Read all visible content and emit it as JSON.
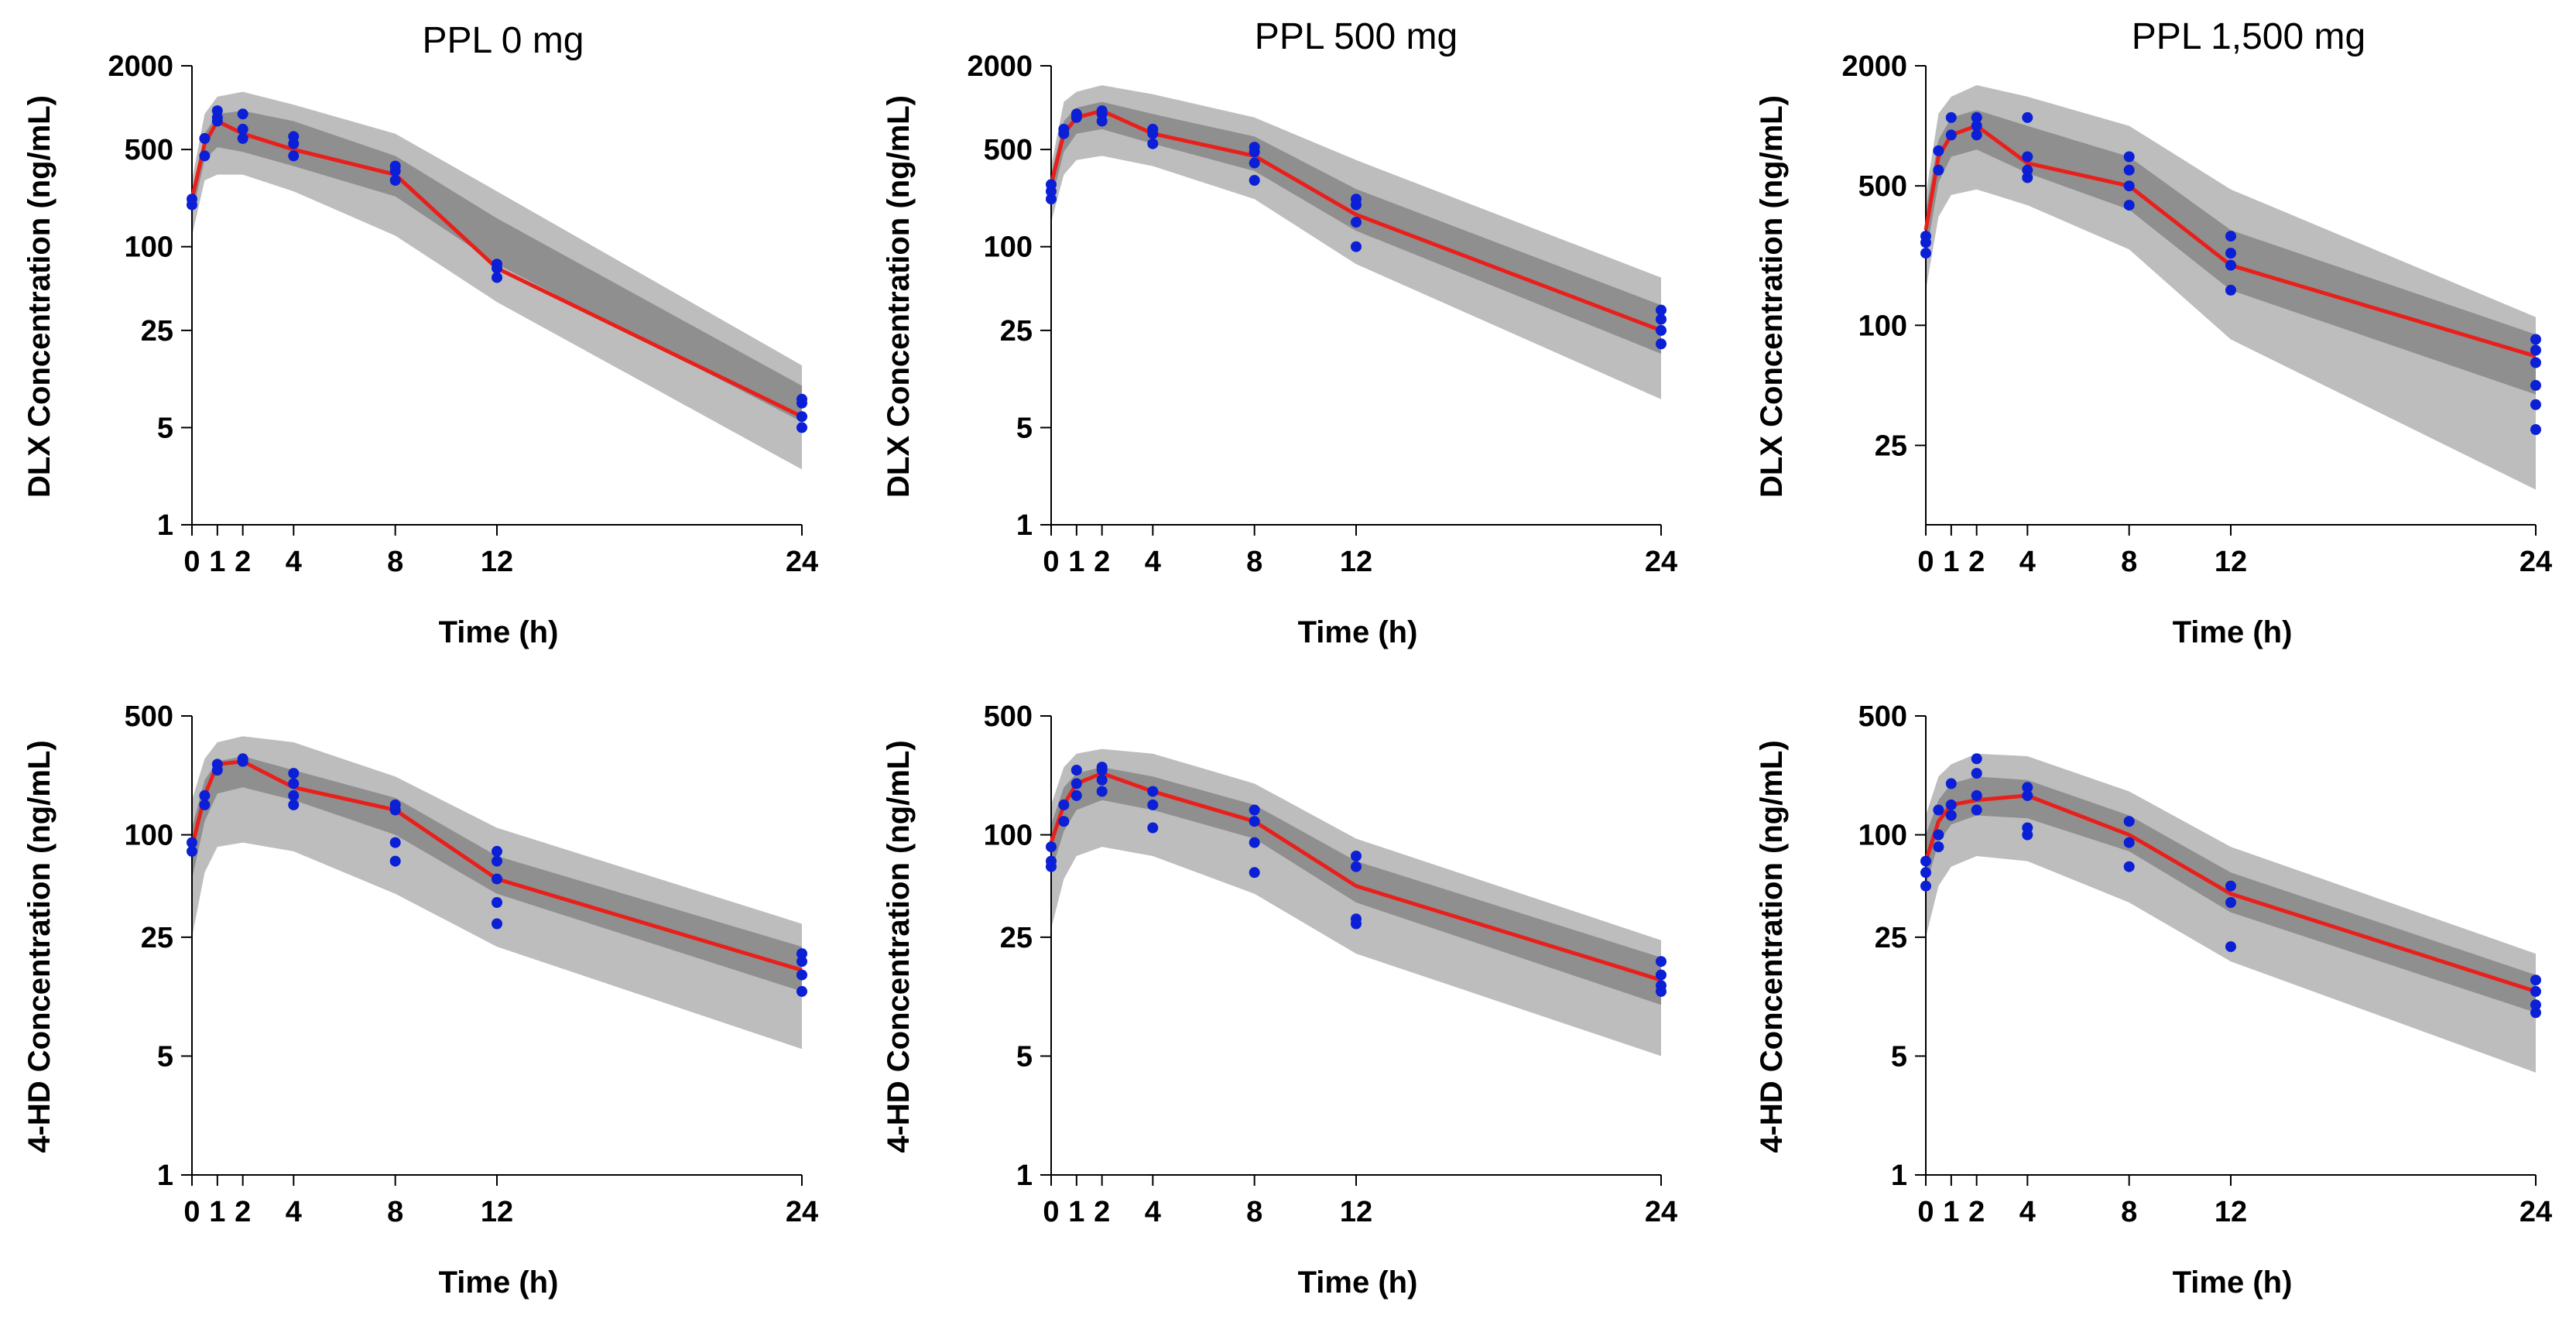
{
  "figure": {
    "background": "#ffffff"
  },
  "colors": {
    "observed": "#0a1fd6",
    "median": "#e8201c",
    "outer_band": "#bdbdbd",
    "inner_band": "#8f8f8f"
  },
  "chart_data": [
    {
      "id": "dlx-ppl0",
      "type": "line",
      "title": "PPL 0 mg",
      "xlabel": "Time (h)",
      "ylabel": "DLX Concentration (ng/mL)",
      "yscale": "log",
      "xlim": [
        0,
        24
      ],
      "ylim": [
        1,
        2000
      ],
      "xticks": [
        0,
        1,
        2,
        4,
        8,
        12,
        24
      ],
      "xtick_labels": [
        "0",
        "1",
        "2",
        "4",
        "8",
        "12",
        "24"
      ],
      "yticks": [
        1,
        5,
        25,
        100,
        500,
        2000
      ],
      "ytick_labels": [
        "1",
        "5",
        "25",
        "100",
        "500",
        "2000"
      ],
      "median": {
        "x": [
          0,
          0.5,
          1,
          2,
          4,
          8,
          12,
          24
        ],
        "y": [
          220,
          550,
          800,
          650,
          500,
          330,
          70,
          6
        ]
      },
      "band_time": [
        0,
        0.5,
        1,
        2,
        4,
        8,
        12,
        24
      ],
      "outer_band": {
        "lower": [
          120,
          300,
          330,
          330,
          250,
          120,
          40,
          2.5
        ],
        "upper": [
          300,
          900,
          1200,
          1300,
          1050,
          650,
          250,
          14
        ]
      },
      "inner_band": {
        "lower": [
          170,
          420,
          520,
          480,
          380,
          230,
          75,
          5.5
        ],
        "upper": [
          240,
          650,
          900,
          950,
          800,
          450,
          160,
          10
        ]
      },
      "observed": [
        [
          0,
          200
        ],
        [
          0,
          220
        ],
        [
          0.5,
          450
        ],
        [
          0.5,
          600
        ],
        [
          1,
          850
        ],
        [
          1,
          950
        ],
        [
          1,
          800
        ],
        [
          2,
          600
        ],
        [
          2,
          700
        ],
        [
          2,
          900
        ],
        [
          4,
          450
        ],
        [
          4,
          550
        ],
        [
          4,
          620
        ],
        [
          8,
          300
        ],
        [
          8,
          350
        ],
        [
          8,
          380
        ],
        [
          12,
          60
        ],
        [
          12,
          70
        ],
        [
          12,
          75
        ],
        [
          24,
          5
        ],
        [
          24,
          6
        ],
        [
          24,
          7.5
        ],
        [
          24,
          8
        ]
      ]
    },
    {
      "id": "dlx-ppl500",
      "type": "line",
      "title": "PPL 500 mg",
      "xlabel": "Time (h)",
      "ylabel": "DLX Concentration (ng/mL)",
      "yscale": "log",
      "xlim": [
        0,
        24
      ],
      "ylim": [
        1,
        2000
      ],
      "xticks": [
        0,
        1,
        2,
        4,
        8,
        12,
        24
      ],
      "xtick_labels": [
        "0",
        "1",
        "2",
        "4",
        "8",
        "12",
        "24"
      ],
      "yticks": [
        1,
        5,
        25,
        100,
        500,
        2000
      ],
      "ytick_labels": [
        "1",
        "5",
        "25",
        "100",
        "500",
        "2000"
      ],
      "median": {
        "x": [
          0,
          0.5,
          1,
          2,
          4,
          8,
          12,
          24
        ],
        "y": [
          280,
          650,
          850,
          950,
          650,
          450,
          170,
          25
        ]
      },
      "band_time": [
        0,
        0.5,
        1,
        2,
        4,
        8,
        12,
        24
      ],
      "outer_band": {
        "lower": [
          150,
          330,
          420,
          450,
          380,
          220,
          75,
          8
        ],
        "upper": [
          380,
          1100,
          1300,
          1450,
          1250,
          850,
          420,
          60
        ]
      },
      "inner_band": {
        "lower": [
          210,
          480,
          650,
          700,
          550,
          350,
          130,
          17
        ],
        "upper": [
          330,
          800,
          1000,
          1100,
          900,
          620,
          260,
          38
        ]
      },
      "observed": [
        [
          0,
          220
        ],
        [
          0,
          250
        ],
        [
          0,
          280
        ],
        [
          0.5,
          650
        ],
        [
          0.5,
          700
        ],
        [
          1,
          900
        ],
        [
          1,
          850
        ],
        [
          2,
          800
        ],
        [
          2,
          900
        ],
        [
          2,
          950
        ],
        [
          4,
          550
        ],
        [
          4,
          650
        ],
        [
          4,
          700
        ],
        [
          8,
          300
        ],
        [
          8,
          400
        ],
        [
          8,
          480
        ],
        [
          8,
          520
        ],
        [
          12,
          100
        ],
        [
          12,
          150
        ],
        [
          12,
          200
        ],
        [
          12,
          220
        ],
        [
          24,
          20
        ],
        [
          24,
          25
        ],
        [
          24,
          30
        ],
        [
          24,
          35
        ]
      ]
    },
    {
      "id": "dlx-ppl1500",
      "type": "line",
      "title": "PPL 1,500 mg",
      "xlabel": "Time (h)",
      "ylabel": "DLX Concentration (ng/mL)",
      "yscale": "log",
      "xlim": [
        0,
        24
      ],
      "ylim": [
        10,
        2000
      ],
      "xticks": [
        0,
        1,
        2,
        4,
        8,
        12,
        24
      ],
      "xtick_labels": [
        "0",
        "1",
        "2",
        "4",
        "8",
        "12",
        "24"
      ],
      "yticks": [
        25,
        100,
        500,
        2000
      ],
      "ytick_labels": [
        "25",
        "100",
        "500",
        "2000"
      ],
      "median": {
        "x": [
          0,
          0.5,
          1,
          2,
          4,
          8,
          12,
          24
        ],
        "y": [
          300,
          700,
          900,
          1000,
          650,
          500,
          200,
          70
        ]
      },
      "band_time": [
        0,
        0.5,
        1,
        2,
        4,
        8,
        12,
        24
      ],
      "outer_band": {
        "lower": [
          150,
          350,
          450,
          480,
          400,
          240,
          85,
          15
        ],
        "upper": [
          450,
          1150,
          1400,
          1600,
          1400,
          1000,
          480,
          110
        ]
      },
      "inner_band": {
        "lower": [
          220,
          520,
          700,
          760,
          580,
          380,
          150,
          45
        ],
        "upper": [
          380,
          850,
          1100,
          1200,
          1000,
          700,
          300,
          90
        ]
      },
      "observed": [
        [
          0,
          230
        ],
        [
          0,
          260
        ],
        [
          0,
          280
        ],
        [
          0.5,
          600
        ],
        [
          0.5,
          750
        ],
        [
          1,
          900
        ],
        [
          1,
          1100
        ],
        [
          2,
          900
        ],
        [
          2,
          1000
        ],
        [
          2,
          1100
        ],
        [
          4,
          550
        ],
        [
          4,
          600
        ],
        [
          4,
          700
        ],
        [
          4,
          1100
        ],
        [
          8,
          400
        ],
        [
          8,
          500
        ],
        [
          8,
          600
        ],
        [
          8,
          700
        ],
        [
          12,
          150
        ],
        [
          12,
          200
        ],
        [
          12,
          230
        ],
        [
          12,
          280
        ],
        [
          24,
          30
        ],
        [
          24,
          40
        ],
        [
          24,
          50
        ],
        [
          24,
          65
        ],
        [
          24,
          75
        ],
        [
          24,
          85
        ]
      ]
    },
    {
      "id": "4hd-ppl0",
      "type": "line",
      "title": "",
      "xlabel": "Time (h)",
      "ylabel": "4-HD Concentration (ng/mL)",
      "yscale": "log",
      "xlim": [
        0,
        24
      ],
      "ylim": [
        1,
        500
      ],
      "xticks": [
        0,
        1,
        2,
        4,
        8,
        12,
        24
      ],
      "xtick_labels": [
        "0",
        "1",
        "2",
        "4",
        "8",
        "12",
        "24"
      ],
      "yticks": [
        1,
        5,
        25,
        100,
        500
      ],
      "ytick_labels": [
        "1",
        "5",
        "25",
        "100",
        "500"
      ],
      "median": {
        "x": [
          0,
          0.5,
          1,
          2,
          4,
          8,
          12,
          24
        ],
        "y": [
          85,
          170,
          260,
          270,
          190,
          140,
          55,
          16
        ]
      },
      "band_time": [
        0,
        0.5,
        1,
        2,
        4,
        8,
        12,
        24
      ],
      "outer_band": {
        "lower": [
          25,
          60,
          85,
          90,
          80,
          45,
          22,
          5.5
        ],
        "upper": [
          160,
          280,
          350,
          380,
          350,
          220,
          110,
          30
        ]
      },
      "inner_band": {
        "lower": [
          55,
          120,
          175,
          190,
          160,
          100,
          45,
          12
        ],
        "upper": [
          110,
          210,
          270,
          290,
          240,
          165,
          75,
          22
        ]
      },
      "observed": [
        [
          0,
          80
        ],
        [
          0,
          90
        ],
        [
          0.5,
          150
        ],
        [
          0.5,
          170
        ],
        [
          1,
          240
        ],
        [
          1,
          260
        ],
        [
          2,
          270
        ],
        [
          2,
          280
        ],
        [
          4,
          150
        ],
        [
          4,
          170
        ],
        [
          4,
          200
        ],
        [
          4,
          230
        ],
        [
          8,
          70
        ],
        [
          8,
          90
        ],
        [
          8,
          140
        ],
        [
          8,
          150
        ],
        [
          12,
          30
        ],
        [
          12,
          40
        ],
        [
          12,
          55
        ],
        [
          12,
          70
        ],
        [
          12,
          80
        ],
        [
          24,
          12
        ],
        [
          24,
          15
        ],
        [
          24,
          18
        ],
        [
          24,
          20
        ]
      ]
    },
    {
      "id": "4hd-ppl500",
      "type": "line",
      "title": "",
      "xlabel": "Time (h)",
      "ylabel": "4-HD Concentration (ng/mL)",
      "yscale": "log",
      "xlim": [
        0,
        24
      ],
      "ylim": [
        1,
        500
      ],
      "xticks": [
        0,
        1,
        2,
        4,
        8,
        12,
        24
      ],
      "xtick_labels": [
        "0",
        "1",
        "2",
        "4",
        "8",
        "12",
        "24"
      ],
      "yticks": [
        1,
        5,
        25,
        100,
        500
      ],
      "ytick_labels": [
        "1",
        "5",
        "25",
        "100",
        "500"
      ],
      "median": {
        "x": [
          0,
          0.5,
          1,
          2,
          4,
          8,
          12,
          24
        ],
        "y": [
          90,
          150,
          200,
          230,
          180,
          120,
          50,
          14
        ]
      },
      "band_time": [
        0,
        0.5,
        1,
        2,
        4,
        8,
        12,
        24
      ],
      "outer_band": {
        "lower": [
          28,
          55,
          75,
          85,
          75,
          45,
          20,
          5
        ],
        "upper": [
          150,
          250,
          300,
          320,
          300,
          200,
          95,
          24
        ]
      },
      "inner_band": {
        "lower": [
          60,
          105,
          140,
          160,
          140,
          95,
          40,
          10
        ],
        "upper": [
          115,
          190,
          230,
          250,
          220,
          150,
          70,
          19
        ]
      },
      "observed": [
        [
          0,
          65
        ],
        [
          0,
          70
        ],
        [
          0,
          85
        ],
        [
          0.5,
          120
        ],
        [
          0.5,
          150
        ],
        [
          1,
          170
        ],
        [
          1,
          200
        ],
        [
          1,
          240
        ],
        [
          2,
          180
        ],
        [
          2,
          210
        ],
        [
          2,
          240
        ],
        [
          2,
          250
        ],
        [
          4,
          110
        ],
        [
          4,
          150
        ],
        [
          4,
          180
        ],
        [
          8,
          60
        ],
        [
          8,
          90
        ],
        [
          8,
          120
        ],
        [
          8,
          140
        ],
        [
          12,
          30
        ],
        [
          12,
          32
        ],
        [
          12,
          65
        ],
        [
          12,
          75
        ],
        [
          24,
          12
        ],
        [
          24,
          13
        ],
        [
          24,
          15
        ],
        [
          24,
          18
        ]
      ]
    },
    {
      "id": "4hd-ppl1500",
      "type": "line",
      "title": "",
      "xlabel": "Time (h)",
      "ylabel": "4-HD Concentration (ng/mL)",
      "yscale": "log",
      "xlim": [
        0,
        24
      ],
      "ylim": [
        1,
        500
      ],
      "xticks": [
        0,
        1,
        2,
        4,
        8,
        12,
        24
      ],
      "xtick_labels": [
        "0",
        "1",
        "2",
        "4",
        "8",
        "12",
        "24"
      ],
      "yticks": [
        1,
        5,
        25,
        100,
        500
      ],
      "ytick_labels": [
        "1",
        "5",
        "25",
        "100",
        "500"
      ],
      "median": {
        "x": [
          0,
          0.5,
          1,
          2,
          4,
          8,
          12,
          24
        ],
        "y": [
          70,
          120,
          150,
          160,
          170,
          100,
          45,
          12
        ]
      },
      "band_time": [
        0,
        0.5,
        1,
        2,
        4,
        8,
        12,
        24
      ],
      "outer_band": {
        "lower": [
          25,
          50,
          65,
          75,
          70,
          40,
          18,
          4
        ],
        "upper": [
          130,
          220,
          260,
          300,
          290,
          180,
          85,
          20
        ]
      },
      "inner_band": {
        "lower": [
          50,
          90,
          115,
          130,
          125,
          80,
          35,
          9
        ],
        "upper": [
          100,
          160,
          200,
          220,
          210,
          130,
          60,
          15
        ]
      },
      "observed": [
        [
          0,
          50
        ],
        [
          0,
          60
        ],
        [
          0,
          70
        ],
        [
          0.5,
          85
        ],
        [
          0.5,
          100
        ],
        [
          0.5,
          140
        ],
        [
          1,
          130
        ],
        [
          1,
          150
        ],
        [
          1,
          200
        ],
        [
          2,
          140
        ],
        [
          2,
          170
        ],
        [
          2,
          230
        ],
        [
          2,
          280
        ],
        [
          4,
          100
        ],
        [
          4,
          110
        ],
        [
          4,
          170
        ],
        [
          4,
          190
        ],
        [
          8,
          65
        ],
        [
          8,
          90
        ],
        [
          8,
          120
        ],
        [
          12,
          22
        ],
        [
          12,
          40
        ],
        [
          12,
          50
        ],
        [
          24,
          9
        ],
        [
          24,
          10
        ],
        [
          24,
          12
        ],
        [
          24,
          14
        ]
      ]
    }
  ]
}
